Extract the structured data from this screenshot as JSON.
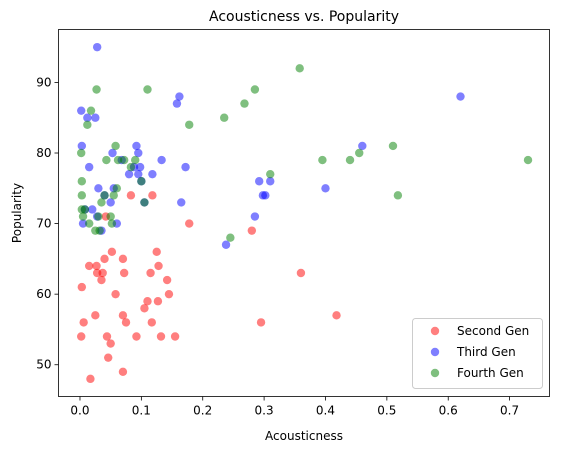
{
  "chart_data": {
    "type": "scatter",
    "title": "Acousticness vs. Popularity",
    "xlabel": "Acousticness",
    "ylabel": "Popularity",
    "xlim": [
      -0.035,
      0.765
    ],
    "ylim": [
      45.5,
      97.5
    ],
    "xticks": [
      0.0,
      0.1,
      0.2,
      0.3,
      0.4,
      0.5,
      0.6,
      0.7
    ],
    "xtick_labels": [
      "0.0",
      "0.1",
      "0.2",
      "0.3",
      "0.4",
      "0.5",
      "0.6",
      "0.7"
    ],
    "yticks": [
      50,
      60,
      70,
      80,
      90
    ],
    "ytick_labels": [
      "50",
      "60",
      "70",
      "80",
      "90"
    ],
    "grid": false,
    "legend_position": "lower-right",
    "series": [
      {
        "name": "Second Gen",
        "color": "#ff0000",
        "points": [
          [
            0.003,
            61
          ],
          [
            0.002,
            54
          ],
          [
            0.006,
            56
          ],
          [
            0.015,
            64
          ],
          [
            0.017,
            48
          ],
          [
            0.025,
            57
          ],
          [
            0.027,
            64
          ],
          [
            0.028,
            63
          ],
          [
            0.035,
            62
          ],
          [
            0.037,
            63
          ],
          [
            0.04,
            65
          ],
          [
            0.042,
            71
          ],
          [
            0.044,
            54
          ],
          [
            0.046,
            51
          ],
          [
            0.05,
            53
          ],
          [
            0.052,
            66
          ],
          [
            0.058,
            60
          ],
          [
            0.07,
            65
          ],
          [
            0.07,
            57
          ],
          [
            0.07,
            49
          ],
          [
            0.072,
            63
          ],
          [
            0.075,
            56
          ],
          [
            0.083,
            74
          ],
          [
            0.092,
            54
          ],
          [
            0.105,
            58
          ],
          [
            0.11,
            59
          ],
          [
            0.115,
            63
          ],
          [
            0.117,
            56
          ],
          [
            0.118,
            74
          ],
          [
            0.125,
            66
          ],
          [
            0.127,
            59
          ],
          [
            0.128,
            64
          ],
          [
            0.132,
            54
          ],
          [
            0.142,
            62
          ],
          [
            0.145,
            60
          ],
          [
            0.155,
            54
          ],
          [
            0.178,
            70
          ],
          [
            0.28,
            69
          ],
          [
            0.295,
            56
          ],
          [
            0.36,
            63
          ],
          [
            0.418,
            57
          ]
        ]
      },
      {
        "name": "Third Gen",
        "color": "#0000ff",
        "points": [
          [
            0.028,
            95
          ],
          [
            0.002,
            86
          ],
          [
            0.012,
            85
          ],
          [
            0.025,
            85
          ],
          [
            0.003,
            81
          ],
          [
            0.005,
            70
          ],
          [
            0.008,
            72
          ],
          [
            0.015,
            78
          ],
          [
            0.02,
            72
          ],
          [
            0.028,
            71
          ],
          [
            0.03,
            75
          ],
          [
            0.035,
            69
          ],
          [
            0.04,
            74
          ],
          [
            0.05,
            73
          ],
          [
            0.053,
            80
          ],
          [
            0.055,
            75
          ],
          [
            0.06,
            70
          ],
          [
            0.068,
            79
          ],
          [
            0.08,
            77
          ],
          [
            0.088,
            78
          ],
          [
            0.092,
            81
          ],
          [
            0.095,
            80
          ],
          [
            0.095,
            77
          ],
          [
            0.098,
            78
          ],
          [
            0.1,
            76
          ],
          [
            0.105,
            73
          ],
          [
            0.118,
            77
          ],
          [
            0.133,
            79
          ],
          [
            0.158,
            87
          ],
          [
            0.162,
            88
          ],
          [
            0.165,
            73
          ],
          [
            0.172,
            78
          ],
          [
            0.238,
            67
          ],
          [
            0.285,
            71
          ],
          [
            0.292,
            76
          ],
          [
            0.298,
            74
          ],
          [
            0.302,
            74
          ],
          [
            0.31,
            76
          ],
          [
            0.4,
            75
          ],
          [
            0.46,
            81
          ],
          [
            0.62,
            88
          ]
        ]
      },
      {
        "name": "Fourth Gen",
        "color": "#008000",
        "points": [
          [
            0.002,
            80
          ],
          [
            0.003,
            76
          ],
          [
            0.003,
            74
          ],
          [
            0.003,
            72
          ],
          [
            0.005,
            71
          ],
          [
            0.008,
            72
          ],
          [
            0.012,
            84
          ],
          [
            0.015,
            70
          ],
          [
            0.018,
            86
          ],
          [
            0.025,
            69
          ],
          [
            0.027,
            89
          ],
          [
            0.03,
            71
          ],
          [
            0.032,
            69
          ],
          [
            0.035,
            73
          ],
          [
            0.04,
            74
          ],
          [
            0.043,
            79
          ],
          [
            0.05,
            71
          ],
          [
            0.052,
            70
          ],
          [
            0.055,
            74
          ],
          [
            0.058,
            81
          ],
          [
            0.06,
            75
          ],
          [
            0.062,
            79
          ],
          [
            0.072,
            79
          ],
          [
            0.083,
            78
          ],
          [
            0.09,
            79
          ],
          [
            0.1,
            76
          ],
          [
            0.105,
            73
          ],
          [
            0.11,
            89
          ],
          [
            0.178,
            84
          ],
          [
            0.235,
            85
          ],
          [
            0.245,
            68
          ],
          [
            0.268,
            87
          ],
          [
            0.285,
            89
          ],
          [
            0.31,
            77
          ],
          [
            0.358,
            92
          ],
          [
            0.395,
            79
          ],
          [
            0.44,
            79
          ],
          [
            0.455,
            80
          ],
          [
            0.51,
            81
          ],
          [
            0.518,
            74
          ],
          [
            0.73,
            79
          ]
        ]
      }
    ]
  }
}
